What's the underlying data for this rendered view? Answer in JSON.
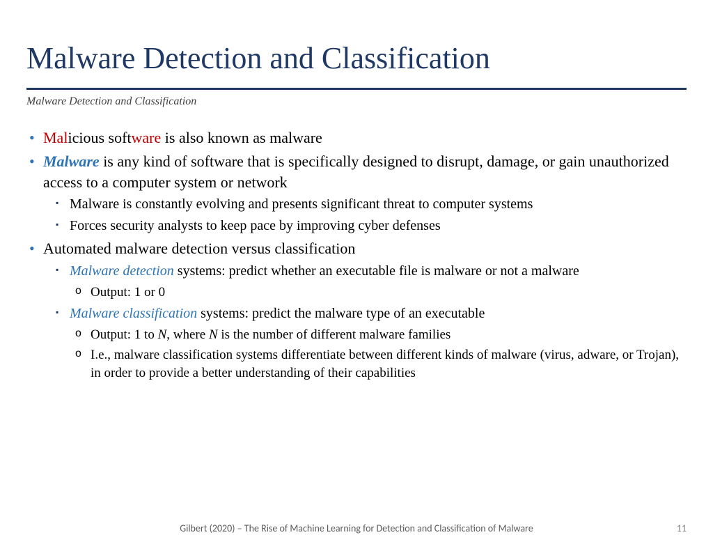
{
  "colors": {
    "title": "#1f3864",
    "subtitle": "#404040",
    "body": "#000000",
    "bullet1": "#2e74b5",
    "bullet2": "#1f3864",
    "red": "#c00000",
    "blue_em": "#2e74b5",
    "hr": "#1f3864",
    "footer": "#595959",
    "pagenum": "#808080"
  },
  "title": "Malware Detection and Classification",
  "subtitle": "Malware Detection and Classification",
  "b1": {
    "p1": "Mal",
    "p2": "icious soft",
    "p3": "ware",
    "p4": " is also known as malware"
  },
  "b2": {
    "em": "Malware",
    "rest": " is any kind of software that is specifically designed to disrupt, damage, or gain unauthorized access to a computer system or network",
    "s1": "Malware is constantly evolving and presents significant threat to computer systems",
    "s2": "Forces security analysts to keep pace by improving cyber defenses"
  },
  "b3": {
    "t": "Automated malware detection versus classification",
    "s1_em": "Malware detection",
    "s1_rest": " systems: predict whether an executable file is malware or not a malware",
    "s1_o1": "Output: 1 or 0",
    "s2_em": "Malware classification",
    "s2_rest": " systems: predict the malware type of an executable",
    "s2_o1_a": "Output: 1 to ",
    "s2_o1_n1": "N",
    "s2_o1_b": ", where ",
    "s2_o1_n2": "N",
    "s2_o1_c": " is the number of different malware families",
    "s2_o2": "I.e., malware classification systems differentiate between different kinds of malware (virus, adware, or Trojan), in order to provide a better understanding of their capabilities"
  },
  "footer": "Gilbert (2020) – The Rise of Machine Learning for Detection and Classification of Malware",
  "page": "11"
}
